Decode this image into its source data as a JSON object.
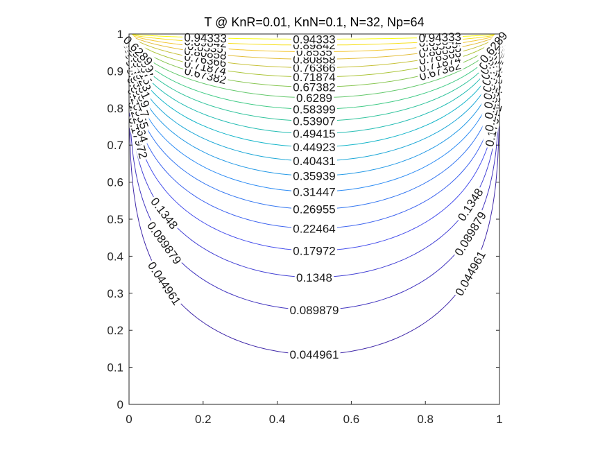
{
  "chart_data": {
    "type": "contour",
    "title": "T @ KnR=0.01, KnN=0.1, N=32, Np=64",
    "xlabel": "",
    "ylabel": "",
    "xlim": [
      0,
      1
    ],
    "ylim": [
      0,
      1
    ],
    "x_ticks": [
      "0",
      "0.2",
      "0.4",
      "0.6",
      "0.8",
      "1"
    ],
    "y_ticks": [
      "0",
      "0.1",
      "0.2",
      "0.3",
      "0.4",
      "0.5",
      "0.6",
      "0.7",
      "0.8",
      "0.9",
      "1"
    ],
    "grid": false,
    "colormap": "parula",
    "levels": [
      {
        "value": 0.044961,
        "label": "0.044961",
        "min_y_at_center": 0.135
      },
      {
        "value": 0.089879,
        "label": "0.089879",
        "min_y_at_center": 0.255
      },
      {
        "value": 0.1348,
        "label": "0.1348",
        "min_y_at_center": 0.343
      },
      {
        "value": 0.17972,
        "label": "0.17972",
        "min_y_at_center": 0.415
      },
      {
        "value": 0.22464,
        "label": "0.22464",
        "min_y_at_center": 0.475
      },
      {
        "value": 0.26955,
        "label": "0.26955",
        "min_y_at_center": 0.527
      },
      {
        "value": 0.31447,
        "label": "0.31447",
        "min_y_at_center": 0.574
      },
      {
        "value": 0.35939,
        "label": "0.35939",
        "min_y_at_center": 0.617
      },
      {
        "value": 0.40431,
        "label": "0.40431",
        "min_y_at_center": 0.657
      },
      {
        "value": 0.44923,
        "label": "0.44923",
        "min_y_at_center": 0.695
      },
      {
        "value": 0.49415,
        "label": "0.49415",
        "min_y_at_center": 0.731
      },
      {
        "value": 0.53907,
        "label": "0.53907",
        "min_y_at_center": 0.765
      },
      {
        "value": 0.58399,
        "label": "0.58399",
        "min_y_at_center": 0.797
      },
      {
        "value": 0.6289,
        "label": "0.6289",
        "min_y_at_center": 0.828
      },
      {
        "value": 0.67382,
        "label": "0.67382",
        "min_y_at_center": 0.857
      },
      {
        "value": 0.71874,
        "label": "0.71874",
        "min_y_at_center": 0.884
      },
      {
        "value": 0.76366,
        "label": "0.76366",
        "min_y_at_center": 0.909
      },
      {
        "value": 0.80858,
        "label": "0.80858",
        "min_y_at_center": 0.932
      },
      {
        "value": 0.8535,
        "label": "0.8535",
        "min_y_at_center": 0.952
      },
      {
        "value": 0.89842,
        "label": "0.89842",
        "min_y_at_center": 0.97
      },
      {
        "value": 0.94333,
        "label": "0.94333",
        "min_y_at_center": 0.986
      }
    ]
  }
}
